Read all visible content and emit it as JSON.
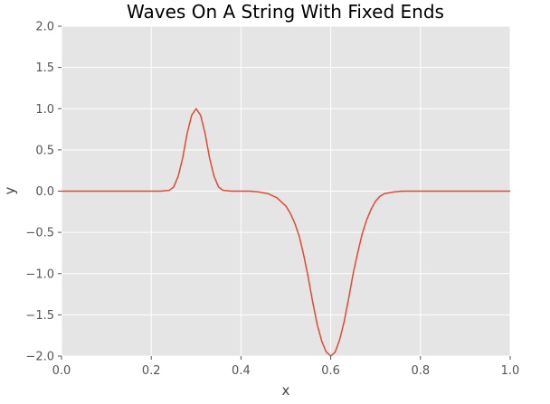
{
  "chart_data": {
    "type": "line",
    "title": "Waves On A String With Fixed Ends",
    "xlabel": "x",
    "ylabel": "y",
    "xlim": [
      0.0,
      1.0
    ],
    "ylim": [
      -2.0,
      2.0
    ],
    "xticks": [
      "0.0",
      "0.2",
      "0.4",
      "0.6",
      "0.8",
      "1.0"
    ],
    "yticks": [
      "2.0",
      "1.5",
      "1.0",
      "0.5",
      "0.0",
      "−0.5",
      "−1.0",
      "−1.5",
      "−2.0"
    ],
    "grid": true,
    "style": {
      "background": "#e5e5e5",
      "grid_color": "#ffffff",
      "line_color": "#e24a33"
    },
    "series": [
      {
        "x": [
          0.0,
          0.05,
          0.1,
          0.15,
          0.2,
          0.22,
          0.24,
          0.25,
          0.26,
          0.27,
          0.28,
          0.29,
          0.3,
          0.31,
          0.32,
          0.33,
          0.34,
          0.35,
          0.36,
          0.38,
          0.4,
          0.42,
          0.44,
          0.46,
          0.48,
          0.5,
          0.51,
          0.52,
          0.53,
          0.54,
          0.55,
          0.56,
          0.57,
          0.58,
          0.59,
          0.6,
          0.61,
          0.62,
          0.63,
          0.64,
          0.65,
          0.66,
          0.67,
          0.68,
          0.69,
          0.7,
          0.71,
          0.72,
          0.74,
          0.76,
          0.78,
          0.8,
          0.85,
          0.9,
          0.95,
          1.0
        ],
        "y": [
          0.0,
          0.0,
          0.0,
          0.0,
          0.0,
          0.0,
          0.01,
          0.05,
          0.18,
          0.4,
          0.7,
          0.92,
          1.0,
          0.92,
          0.7,
          0.4,
          0.18,
          0.05,
          0.01,
          0.0,
          0.0,
          0.0,
          -0.01,
          -0.03,
          -0.08,
          -0.18,
          -0.27,
          -0.39,
          -0.55,
          -0.78,
          -1.05,
          -1.35,
          -1.62,
          -1.82,
          -1.95,
          -2.0,
          -1.95,
          -1.8,
          -1.58,
          -1.3,
          -1.0,
          -0.75,
          -0.52,
          -0.35,
          -0.22,
          -0.12,
          -0.06,
          -0.03,
          -0.01,
          0.0,
          0.0,
          0.0,
          0.0,
          0.0,
          0.0,
          0.0
        ]
      }
    ]
  }
}
